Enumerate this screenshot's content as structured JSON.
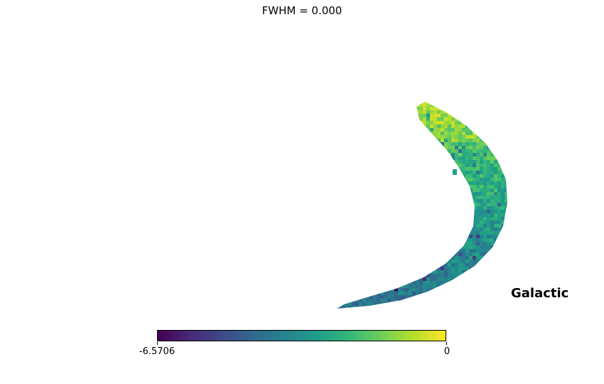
{
  "chart_data": {
    "type": "heatmap",
    "title": "FWHM = 0.000",
    "projection_label": "Galactic",
    "colormap": "viridis",
    "colorbar": {
      "min": -6.5706,
      "max": 0,
      "tick_labels": [
        "-6.5706",
        "0"
      ]
    },
    "colormap_stops": [
      "#440154",
      "#482878",
      "#3e4989",
      "#31688e",
      "#26828e",
      "#1f9e89",
      "#35b779",
      "#6ece58",
      "#b5de2b",
      "#fde725"
    ]
  }
}
